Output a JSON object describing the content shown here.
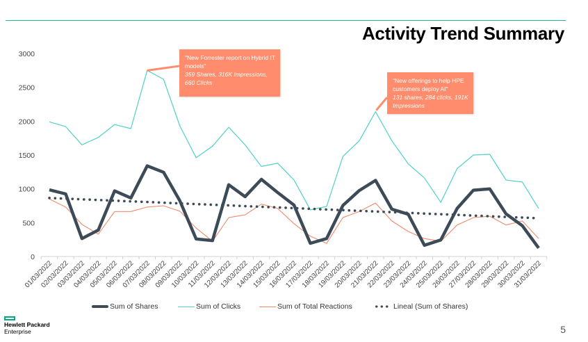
{
  "slide": {
    "title": "Activity Trend Summary",
    "page_number": "5",
    "logo": {
      "line1": "Hewlett Packard",
      "line2": "Enterprise"
    }
  },
  "callouts": [
    {
      "quote": "\"New Forrester report on Hybrid IT models\"",
      "stats": "359 Shares, 316K Impressions, 660 Clicks",
      "anchor_date": "07/03/2022"
    },
    {
      "quote": "\"New offerings to help HPE customers deploy AI\"",
      "stats": "131 shares, 284 clicks, 191K Impressions",
      "anchor_date": "21/03/2022"
    }
  ],
  "colors": {
    "shares": "#3c4b57",
    "clicks": "#4fd1c5",
    "reactions": "#f08a6c",
    "trend": "#3c4b57",
    "callout": "#ff8d6d",
    "accent": "#01a982"
  },
  "chart_data": {
    "type": "line",
    "title": "Activity Trend Summary",
    "xlabel": "",
    "ylabel": "",
    "ylim": [
      0,
      3000
    ],
    "yticks": [
      0,
      500,
      1000,
      1500,
      2000,
      2500,
      3000
    ],
    "grid": false,
    "legend_position": "bottom",
    "x": [
      "01/03/2022",
      "02/03/2022",
      "03/03/2022",
      "04/03/2022",
      "05/03/2022",
      "06/03/2022",
      "07/03/2022",
      "08/03/2022",
      "09/03/2022",
      "10/03/2022",
      "11/03/2022",
      "12/03/2022",
      "13/03/2022",
      "14/03/2022",
      "15/03/2022",
      "16/03/2022",
      "17/03/2022",
      "18/03/2022",
      "19/03/2022",
      "20/03/2022",
      "21/03/2022",
      "22/03/2022",
      "23/03/2022",
      "24/03/2022",
      "25/03/2022",
      "26/03/2022",
      "27/03/2022",
      "28/03/2022",
      "29/03/2022",
      "30/03/2022",
      "31/03/2022"
    ],
    "series": [
      {
        "name": "Sum of Shares",
        "key": "shares",
        "values": [
          985,
          925,
          265,
          390,
          970,
          865,
          1340,
          1245,
          825,
          260,
          235,
          1060,
          885,
          1140,
          945,
          760,
          195,
          265,
          755,
          975,
          1125,
          700,
          625,
          165,
          245,
          710,
          980,
          1000,
          630,
          455,
          125
        ]
      },
      {
        "name": "Sum of Clicks",
        "key": "clicks",
        "values": [
          1990,
          1920,
          1650,
          1760,
          1950,
          1890,
          2750,
          2620,
          1930,
          1460,
          1630,
          1910,
          1650,
          1330,
          1380,
          1130,
          690,
          740,
          1480,
          1710,
          2140,
          1710,
          1370,
          1160,
          800,
          1300,
          1500,
          1510,
          1130,
          1100,
          710
        ]
      },
      {
        "name": "Sum of Total Reactions",
        "key": "reactions",
        "values": [
          850,
          730,
          475,
          330,
          665,
          665,
          730,
          750,
          670,
          420,
          225,
          575,
          615,
          775,
          710,
          485,
          300,
          195,
          575,
          665,
          790,
          525,
          370,
          265,
          225,
          465,
          575,
          595,
          465,
          525,
          265
        ]
      },
      {
        "name": "Lineal (Sum of Shares)",
        "key": "trend",
        "style": "dotted",
        "values": [
          865,
          855,
          845,
          835,
          825,
          815,
          805,
          795,
          785,
          775,
          765,
          755,
          745,
          735,
          725,
          715,
          705,
          695,
          685,
          675,
          665,
          655,
          645,
          635,
          625,
          615,
          605,
          595,
          585,
          575,
          565
        ]
      }
    ]
  }
}
